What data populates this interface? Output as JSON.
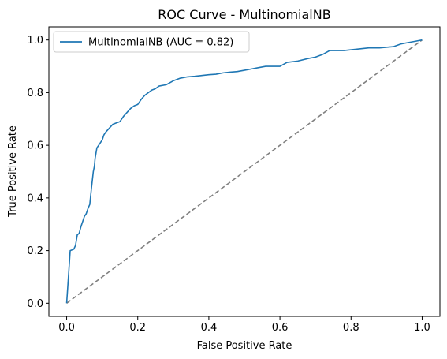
{
  "chart_data": {
    "type": "line",
    "title": "ROC Curve - MultinomialNB",
    "xlabel": "False Positive Rate",
    "ylabel": "True Positive Rate",
    "xlim": [
      -0.05,
      1.05
    ],
    "ylim": [
      -0.05,
      1.05
    ],
    "xticks": [
      0.0,
      0.2,
      0.4,
      0.6,
      0.8,
      1.0
    ],
    "yticks": [
      0.0,
      0.2,
      0.4,
      0.6,
      0.8,
      1.0
    ],
    "xtick_labels": [
      "0.0",
      "0.2",
      "0.4",
      "0.6",
      "0.8",
      "1.0"
    ],
    "ytick_labels": [
      "0.0",
      "0.2",
      "0.4",
      "0.6",
      "0.8",
      "1.0"
    ],
    "grid": false,
    "legend_position": "top-left",
    "series": [
      {
        "name": "MultinomialNB (AUC = 0.82)",
        "color": "#1f77b4",
        "style": "solid",
        "x": [
          0.0,
          0.01,
          0.02,
          0.025,
          0.03,
          0.035,
          0.04,
          0.045,
          0.05,
          0.055,
          0.06,
          0.065,
          0.07,
          0.075,
          0.078,
          0.08,
          0.085,
          0.09,
          0.095,
          0.1,
          0.105,
          0.11,
          0.12,
          0.13,
          0.14,
          0.15,
          0.16,
          0.17,
          0.18,
          0.19,
          0.2,
          0.21,
          0.22,
          0.23,
          0.24,
          0.25,
          0.26,
          0.28,
          0.3,
          0.32,
          0.34,
          0.36,
          0.38,
          0.4,
          0.42,
          0.44,
          0.46,
          0.48,
          0.5,
          0.52,
          0.54,
          0.56,
          0.6,
          0.62,
          0.65,
          0.68,
          0.7,
          0.72,
          0.74,
          0.78,
          0.85,
          0.88,
          0.92,
          0.94,
          0.96,
          0.98,
          1.0
        ],
        "y": [
          0.0,
          0.2,
          0.205,
          0.22,
          0.26,
          0.265,
          0.29,
          0.31,
          0.33,
          0.34,
          0.36,
          0.375,
          0.44,
          0.5,
          0.52,
          0.55,
          0.59,
          0.6,
          0.61,
          0.62,
          0.64,
          0.65,
          0.665,
          0.68,
          0.685,
          0.69,
          0.71,
          0.725,
          0.74,
          0.75,
          0.755,
          0.775,
          0.79,
          0.8,
          0.81,
          0.815,
          0.825,
          0.83,
          0.845,
          0.855,
          0.86,
          0.862,
          0.865,
          0.868,
          0.87,
          0.875,
          0.878,
          0.88,
          0.885,
          0.89,
          0.895,
          0.9,
          0.9,
          0.915,
          0.92,
          0.93,
          0.935,
          0.945,
          0.96,
          0.96,
          0.97,
          0.97,
          0.975,
          0.985,
          0.99,
          0.995,
          1.0
        ]
      },
      {
        "name": "",
        "color": "#808080",
        "style": "dashed",
        "x": [
          0.0,
          1.0
        ],
        "y": [
          0.0,
          1.0
        ]
      }
    ]
  }
}
